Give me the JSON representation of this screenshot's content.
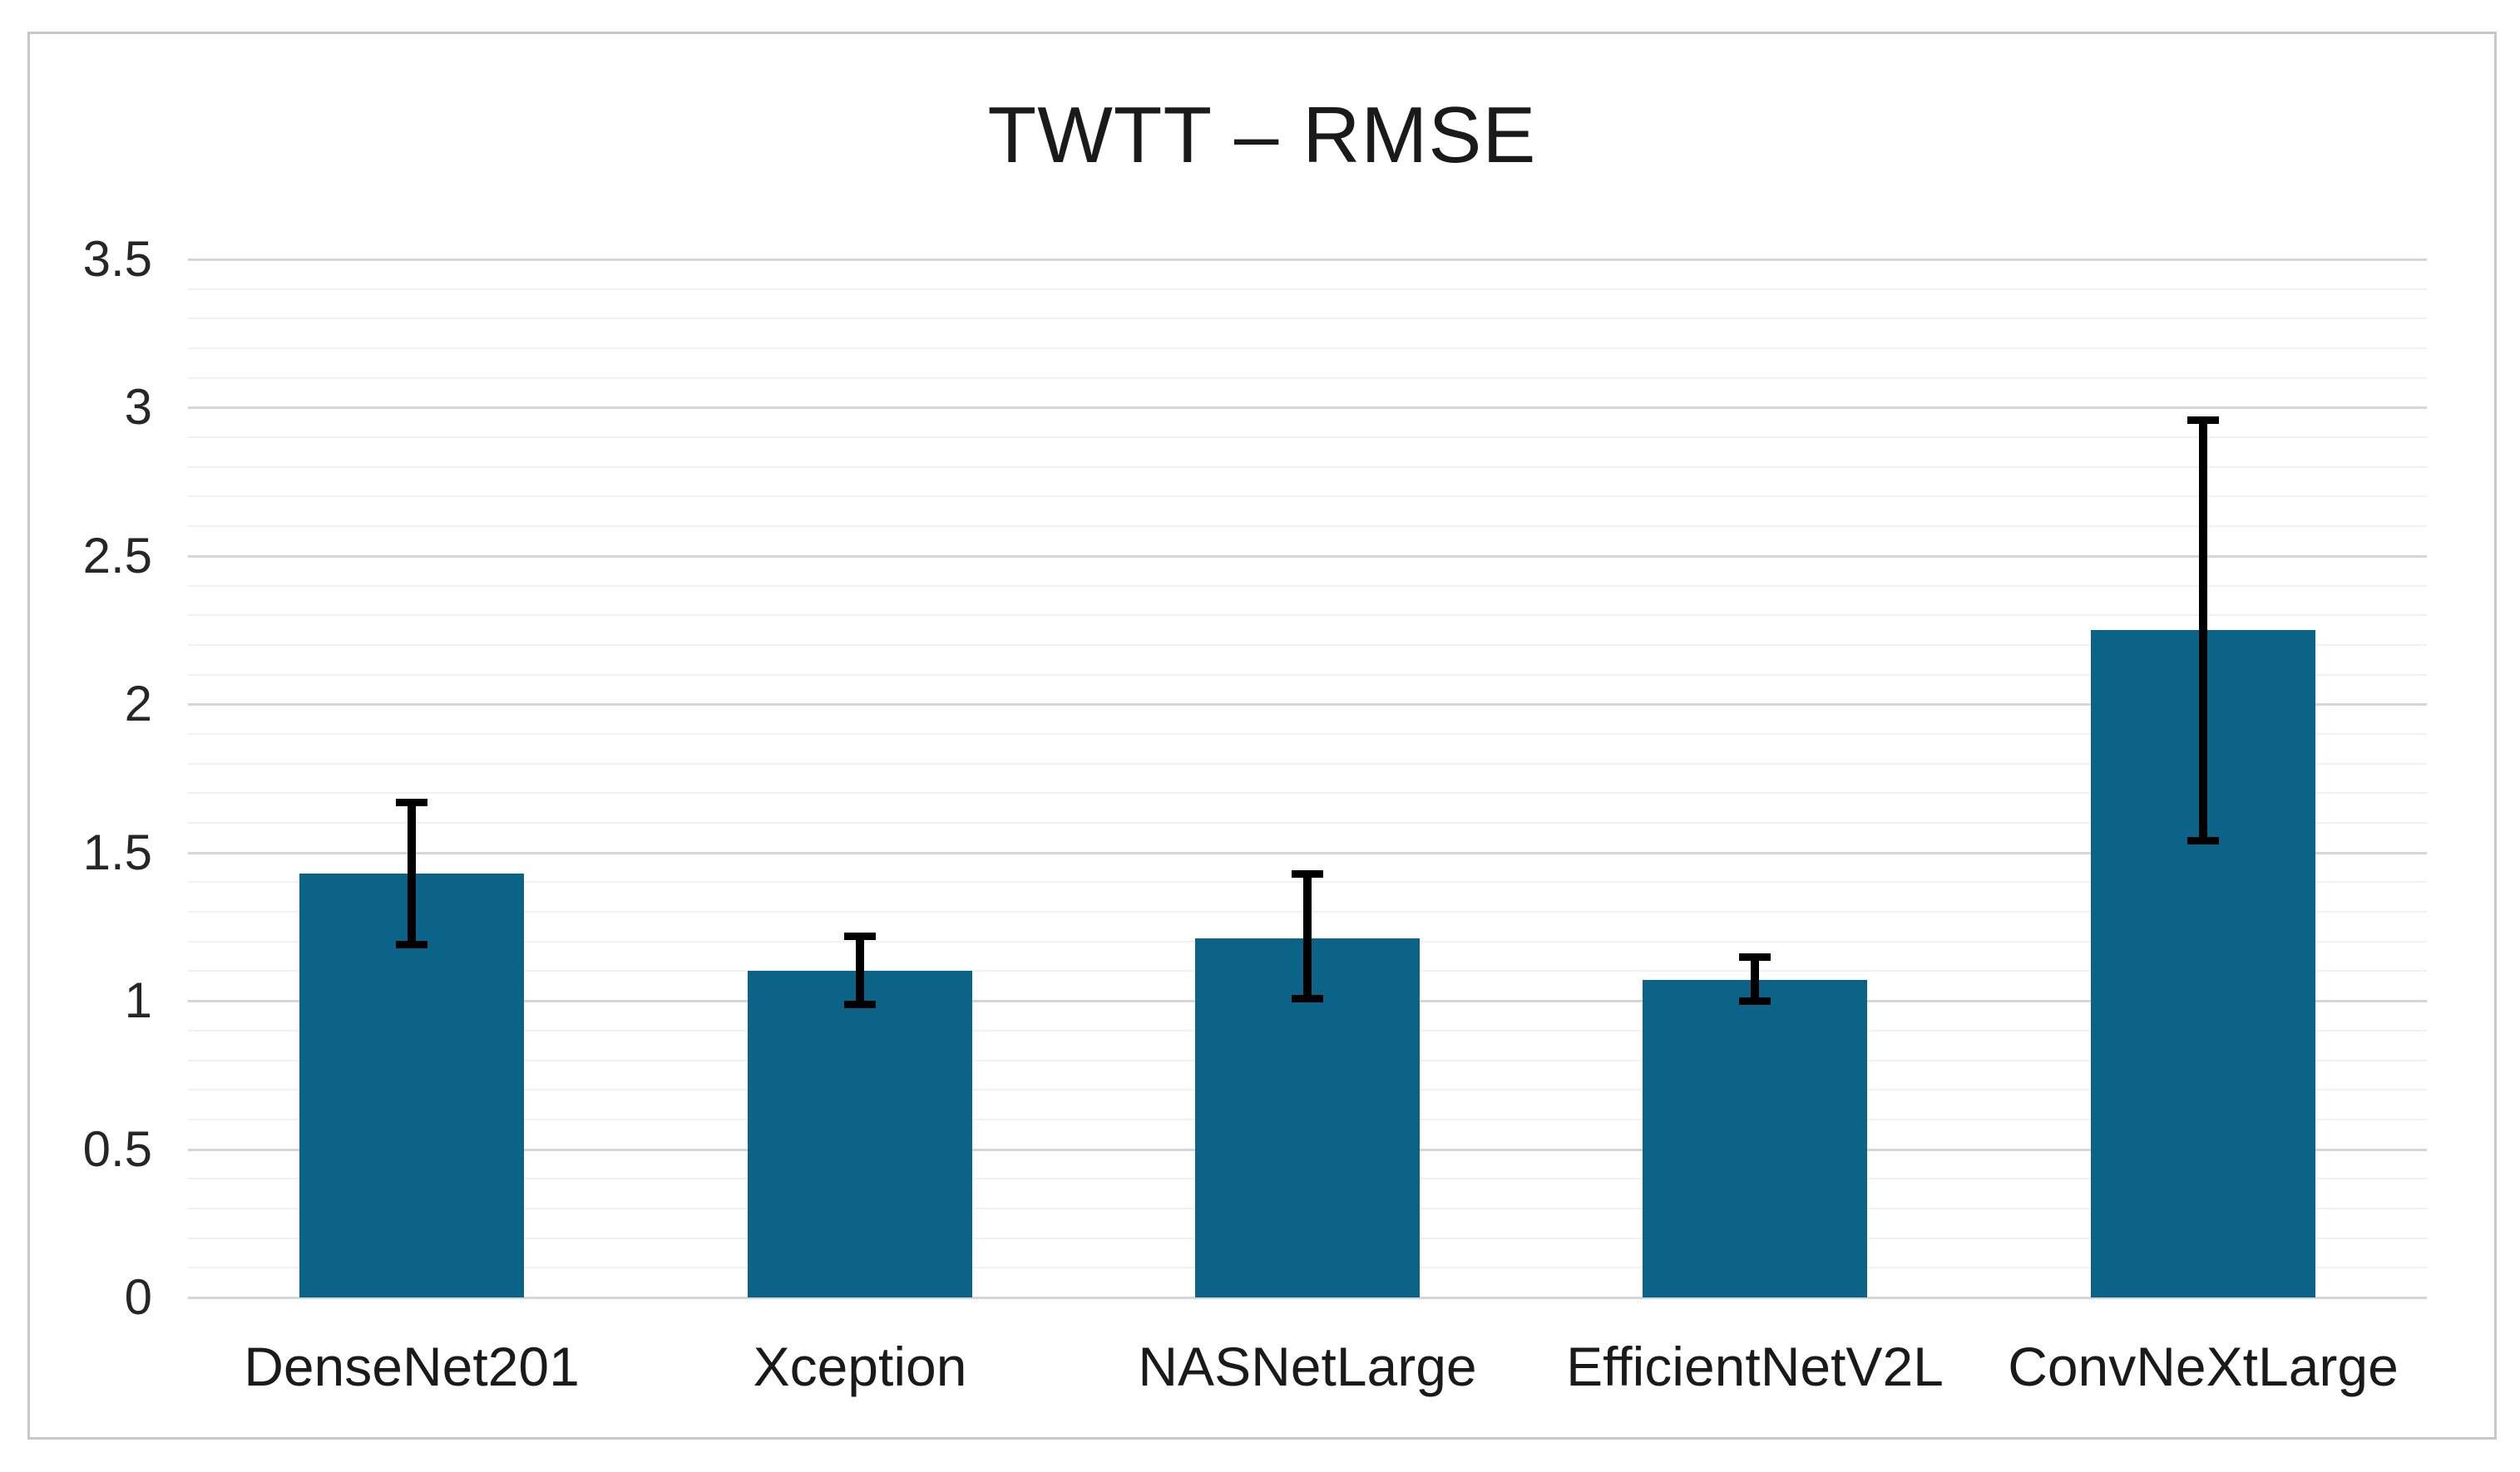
{
  "chart_data": {
    "type": "bar",
    "title": "TWTT – RMSE",
    "xlabel": "",
    "ylabel": "",
    "categories": [
      "DenseNet201",
      "Xception",
      "NASNetLarge",
      "EfficientNetV2L",
      "ConvNeXtLarge"
    ],
    "values": [
      1.43,
      1.1,
      1.21,
      1.07,
      2.25
    ],
    "error_bars": {
      "upper": [
        1.67,
        1.22,
        1.43,
        1.15,
        2.96
      ],
      "lower": [
        1.19,
        0.99,
        1.01,
        1.0,
        1.54
      ]
    },
    "ylim": [
      0,
      3.5
    ],
    "y_major_step": 0.5,
    "y_minor_step": 0.1,
    "y_tick_labels": [
      "0",
      "0.5",
      "1",
      "1.5",
      "2",
      "2.5",
      "3",
      "3.5"
    ],
    "grid": "on",
    "legend": "none",
    "colors": {
      "bar": "#0b6388",
      "error_bar": "#000000",
      "grid_major": "#d6d6d6",
      "grid_minor": "#f1f1f1",
      "text": "#262626",
      "frame_border": "#c7c7c7",
      "background": "#ffffff"
    }
  }
}
